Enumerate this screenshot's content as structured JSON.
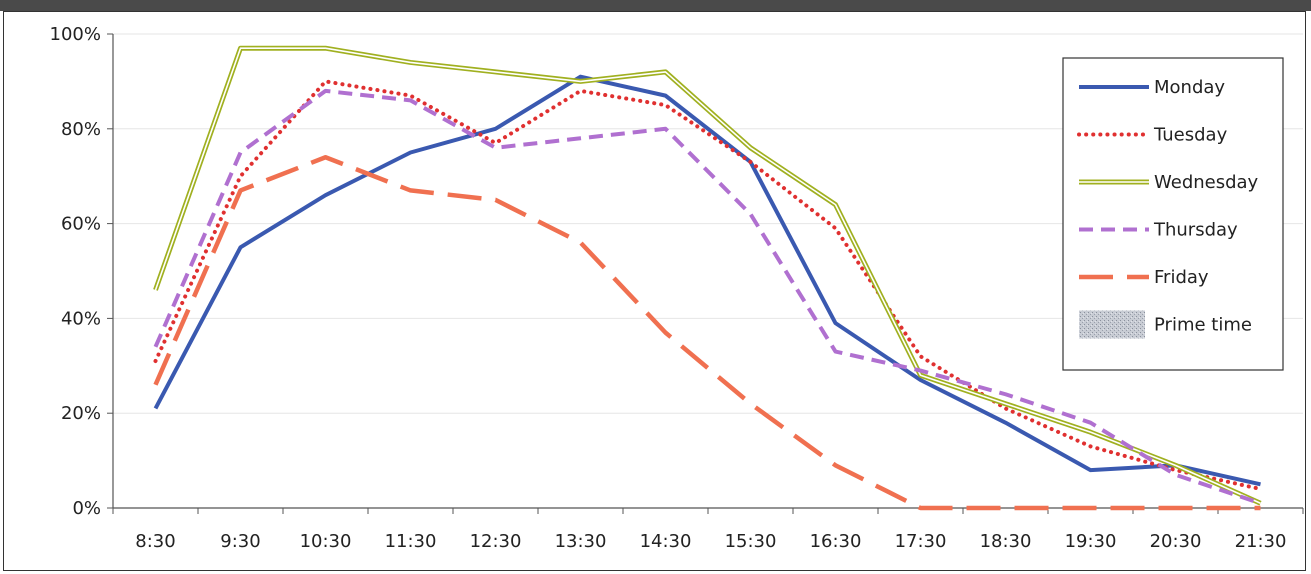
{
  "chart_data": {
    "type": "line",
    "title": "",
    "xlabel": "",
    "ylabel": "",
    "categories": [
      "8:30",
      "9:30",
      "10:30",
      "11:30",
      "12:30",
      "13:30",
      "14:30",
      "15:30",
      "16:30",
      "17:30",
      "18:30",
      "19:30",
      "20:30",
      "21:30"
    ],
    "ylim": [
      0,
      100
    ],
    "yticks": [
      "0%",
      "20%",
      "40%",
      "60%",
      "80%",
      "100%"
    ],
    "grid": true,
    "legend_position": "top-right",
    "series": [
      {
        "name": "Monday",
        "color": "#3a59b0",
        "style": "solid",
        "values": [
          21,
          55,
          66,
          75,
          80,
          91,
          87,
          73,
          39,
          27,
          18,
          8,
          9,
          5
        ]
      },
      {
        "name": "Tuesday",
        "color": "#e03030",
        "style": "dotted",
        "values": [
          31,
          70,
          90,
          87,
          77,
          88,
          85,
          73,
          59,
          32,
          21,
          13,
          8,
          4
        ]
      },
      {
        "name": "Wednesday",
        "color": "#a0b020",
        "style": "double",
        "values": [
          46,
          97,
          97,
          94,
          92,
          90,
          92,
          76,
          64,
          28,
          22,
          16,
          9,
          1
        ]
      },
      {
        "name": "Thursday",
        "color": "#b070d0",
        "style": "dashed",
        "values": [
          34,
          75,
          88,
          86,
          76,
          78,
          80,
          62,
          33,
          29,
          24,
          18,
          7,
          1
        ]
      },
      {
        "name": "Friday",
        "color": "#f07050",
        "style": "longdash",
        "values": [
          26,
          67,
          74,
          67,
          65,
          56,
          37,
          22,
          9,
          0,
          0,
          0,
          0,
          0
        ]
      }
    ],
    "legend_extra": [
      {
        "name": "Prime time",
        "pattern": "grey-texture"
      }
    ]
  }
}
